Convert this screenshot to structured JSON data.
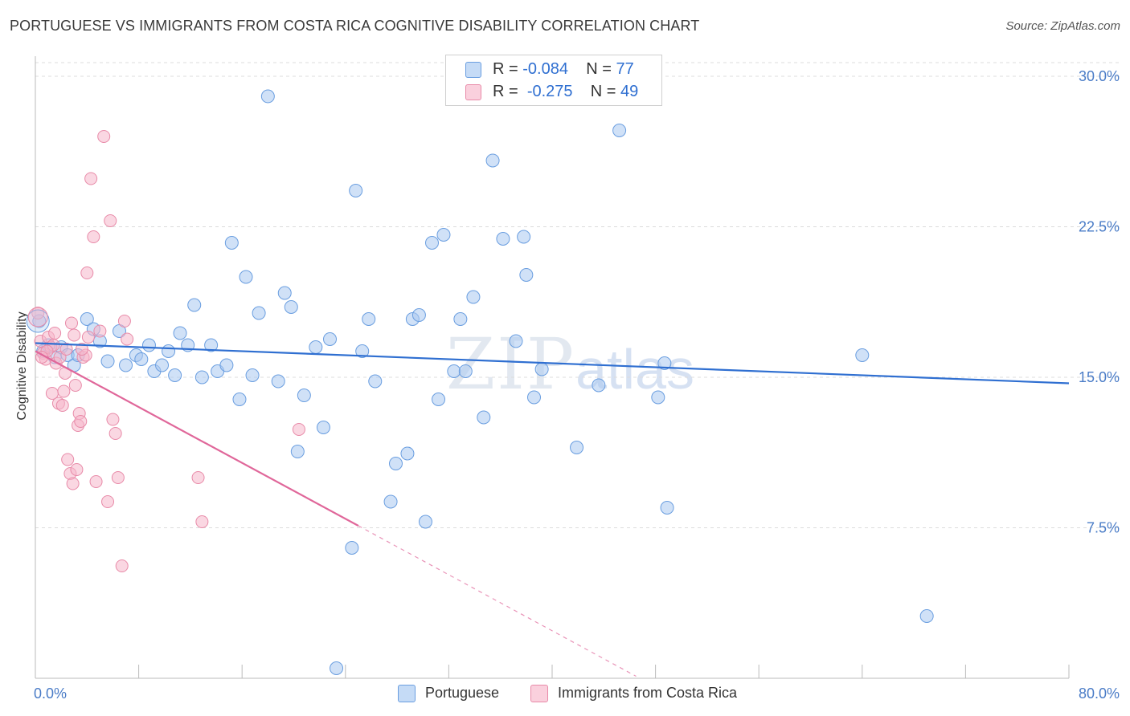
{
  "title": "PORTUGUESE VS IMMIGRANTS FROM COSTA RICA COGNITIVE DISABILITY CORRELATION CHART",
  "source": "Source: ZipAtlas.com",
  "watermark": {
    "zip": "ZIP",
    "atlas": "atlas"
  },
  "legend": {
    "rows": [
      {
        "r_label": "R =",
        "r_value": "-0.084",
        "n_label": "N =",
        "n_value": "77",
        "color": "#a9c8f0"
      },
      {
        "r_label": "R =",
        "r_value": "-0.275",
        "n_label": "N =",
        "n_value": "49",
        "color": "#f5b7cb"
      }
    ]
  },
  "bottom_legend": [
    {
      "label": "Portuguese",
      "color": "#a9c8f0"
    },
    {
      "label": "Immigrants from Costa Rica",
      "color": "#f5b7cb"
    }
  ],
  "chart_data": {
    "type": "scatter",
    "xlabel": "",
    "ylabel": "Cognitive Disability",
    "xlim": [
      0,
      80
    ],
    "ylim": [
      0,
      31
    ],
    "x_tick_labels": [
      "0.0%",
      "80.0%"
    ],
    "y_ticks": [
      7.5,
      15.0,
      22.5,
      30.0
    ],
    "y_tick_labels": [
      "7.5%",
      "15.0%",
      "22.5%",
      "30.0%"
    ],
    "grid": "horizontal dashed",
    "legend_position": "top-center",
    "series": [
      {
        "name": "Portuguese",
        "color": "#6a9ee0",
        "fill": "#a9c8f0",
        "trend": {
          "x": [
            0,
            80
          ],
          "y": [
            16.7,
            14.7
          ],
          "style": "solid",
          "color": "#2f6fd1"
        },
        "points": [
          [
            0.3,
            17.8
          ],
          [
            0.6,
            16.3
          ],
          [
            1.0,
            16.6
          ],
          [
            1.5,
            16.0
          ],
          [
            2.0,
            16.5
          ],
          [
            2.5,
            16.1
          ],
          [
            3.0,
            15.6
          ],
          [
            3.3,
            16.1
          ],
          [
            4.0,
            17.9
          ],
          [
            4.5,
            17.4
          ],
          [
            5.0,
            16.8
          ],
          [
            5.6,
            15.8
          ],
          [
            6.5,
            17.3
          ],
          [
            7.0,
            15.6
          ],
          [
            7.8,
            16.1
          ],
          [
            8.2,
            15.9
          ],
          [
            8.8,
            16.6
          ],
          [
            9.2,
            15.3
          ],
          [
            9.8,
            15.6
          ],
          [
            10.3,
            16.3
          ],
          [
            10.8,
            15.1
          ],
          [
            11.2,
            17.2
          ],
          [
            11.8,
            16.6
          ],
          [
            12.3,
            18.6
          ],
          [
            12.9,
            15.0
          ],
          [
            13.6,
            16.6
          ],
          [
            14.1,
            15.3
          ],
          [
            14.8,
            15.6
          ],
          [
            15.2,
            21.7
          ],
          [
            15.8,
            13.9
          ],
          [
            16.3,
            20.0
          ],
          [
            16.8,
            15.1
          ],
          [
            17.3,
            18.2
          ],
          [
            18.0,
            29.0
          ],
          [
            18.8,
            14.8
          ],
          [
            19.3,
            19.2
          ],
          [
            19.8,
            18.5
          ],
          [
            20.3,
            11.3
          ],
          [
            20.8,
            14.1
          ],
          [
            21.7,
            16.5
          ],
          [
            22.3,
            12.5
          ],
          [
            22.8,
            16.9
          ],
          [
            23.3,
            0.5
          ],
          [
            24.5,
            6.5
          ],
          [
            24.8,
            24.3
          ],
          [
            25.3,
            16.3
          ],
          [
            25.8,
            17.9
          ],
          [
            26.3,
            14.8
          ],
          [
            27.5,
            8.8
          ],
          [
            27.9,
            10.7
          ],
          [
            28.8,
            11.2
          ],
          [
            29.2,
            17.9
          ],
          [
            29.7,
            18.1
          ],
          [
            30.7,
            21.7
          ],
          [
            31.2,
            13.9
          ],
          [
            31.6,
            22.1
          ],
          [
            32.4,
            15.3
          ],
          [
            32.9,
            17.9
          ],
          [
            33.3,
            15.3
          ],
          [
            33.9,
            19.0
          ],
          [
            34.7,
            13.0
          ],
          [
            35.4,
            25.8
          ],
          [
            36.2,
            21.9
          ],
          [
            37.2,
            16.8
          ],
          [
            37.8,
            22.0
          ],
          [
            38.0,
            20.1
          ],
          [
            38.6,
            14.0
          ],
          [
            39.2,
            15.4
          ],
          [
            41.9,
            11.5
          ],
          [
            43.6,
            14.6
          ],
          [
            45.2,
            27.3
          ],
          [
            48.2,
            14.0
          ],
          [
            48.7,
            15.7
          ],
          [
            48.9,
            8.5
          ],
          [
            64.0,
            16.1
          ],
          [
            69.0,
            3.1
          ],
          [
            30.2,
            7.8
          ]
        ]
      },
      {
        "name": "Immigrants from Costa Rica",
        "color": "#e88aa8",
        "fill": "#f5b7cb",
        "trend": {
          "x": [
            0,
            25
          ],
          "y": [
            16.3,
            7.6
          ],
          "style": "solid",
          "color": "#e0679a",
          "dashed_ext": {
            "x": [
              25,
              46.5
            ],
            "y": [
              7.6,
              0.1
            ]
          }
        },
        "points": [
          [
            0.2,
            18.2
          ],
          [
            0.4,
            16.8
          ],
          [
            0.6,
            16.2
          ],
          [
            0.8,
            15.9
          ],
          [
            1.0,
            17.0
          ],
          [
            1.2,
            16.5
          ],
          [
            1.3,
            14.2
          ],
          [
            1.5,
            17.2
          ],
          [
            1.6,
            15.7
          ],
          [
            1.8,
            13.7
          ],
          [
            1.9,
            16.0
          ],
          [
            2.1,
            13.6
          ],
          [
            2.2,
            14.3
          ],
          [
            2.4,
            16.4
          ],
          [
            2.5,
            10.9
          ],
          [
            2.7,
            10.2
          ],
          [
            2.8,
            17.7
          ],
          [
            2.9,
            9.7
          ],
          [
            3.0,
            17.1
          ],
          [
            3.1,
            14.6
          ],
          [
            3.2,
            10.4
          ],
          [
            3.3,
            12.6
          ],
          [
            3.4,
            13.2
          ],
          [
            3.5,
            12.8
          ],
          [
            3.7,
            16.0
          ],
          [
            3.9,
            16.1
          ],
          [
            4.1,
            17.0
          ],
          [
            4.3,
            24.9
          ],
          [
            4.5,
            22.0
          ],
          [
            4.7,
            9.8
          ],
          [
            5.0,
            17.3
          ],
          [
            5.3,
            27.0
          ],
          [
            5.6,
            8.8
          ],
          [
            5.8,
            22.8
          ],
          [
            6.0,
            12.9
          ],
          [
            6.2,
            12.2
          ],
          [
            6.4,
            10.0
          ],
          [
            6.7,
            5.6
          ],
          [
            6.9,
            17.8
          ],
          [
            7.1,
            16.9
          ],
          [
            4.0,
            20.2
          ],
          [
            3.6,
            16.4
          ],
          [
            2.3,
            15.2
          ],
          [
            1.4,
            16.6
          ],
          [
            0.9,
            16.3
          ],
          [
            12.6,
            10.0
          ],
          [
            12.9,
            7.8
          ],
          [
            20.4,
            12.4
          ],
          [
            0.5,
            16.0
          ]
        ]
      }
    ]
  }
}
